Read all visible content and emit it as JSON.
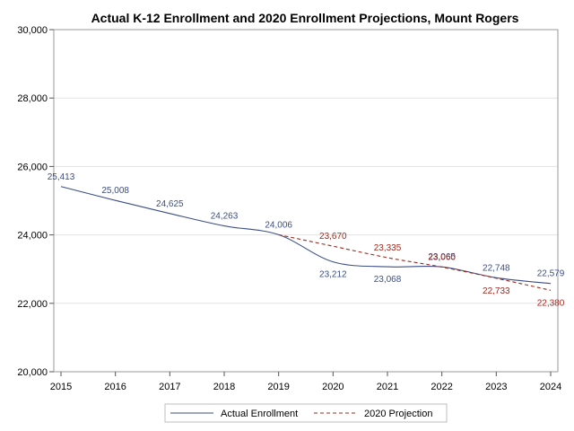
{
  "chart_data": {
    "type": "line",
    "title": "Actual K-12 Enrollment and 2020 Enrollment Projections, Mount Rogers",
    "xlabel": "",
    "ylabel": "",
    "x": [
      2015,
      2016,
      2017,
      2018,
      2019,
      2020,
      2021,
      2022,
      2023,
      2024
    ],
    "x_tick_labels": [
      "2015",
      "2016",
      "2017",
      "2018",
      "2019",
      "2020",
      "2021",
      "2022",
      "2023",
      "2024"
    ],
    "ylim": [
      20000,
      30000
    ],
    "y_ticks": [
      20000,
      22000,
      24000,
      26000,
      28000,
      30000
    ],
    "y_tick_labels": [
      "20,000",
      "22,000",
      "24,000",
      "26,000",
      "28,000",
      "30,000"
    ],
    "grid": true,
    "legend_position": "bottom-center",
    "series": [
      {
        "name": "Actual Enrollment",
        "color": "#3b4e86",
        "line_style": "solid",
        "x": [
          2015,
          2016,
          2017,
          2018,
          2019,
          2020,
          2021,
          2022,
          2023,
          2024
        ],
        "values": [
          25413,
          25008,
          24625,
          24263,
          24006,
          23212,
          23068,
          23065,
          22748,
          22579
        ],
        "labels": [
          "25,413",
          "25,008",
          "24,625",
          "24,263",
          "24,006",
          "23,212",
          "23,068",
          "23,065",
          "22,748",
          "22,579"
        ]
      },
      {
        "name": "2020 Projection",
        "color": "#a02a1e",
        "line_style": "dashed",
        "x": [
          2019,
          2020,
          2021,
          2022,
          2023,
          2024
        ],
        "values": [
          24006,
          23670,
          23335,
          23060,
          22733,
          22380
        ],
        "labels": [
          "",
          "23,670",
          "23,335",
          "23,060",
          "22,733",
          "22,380"
        ]
      }
    ]
  }
}
